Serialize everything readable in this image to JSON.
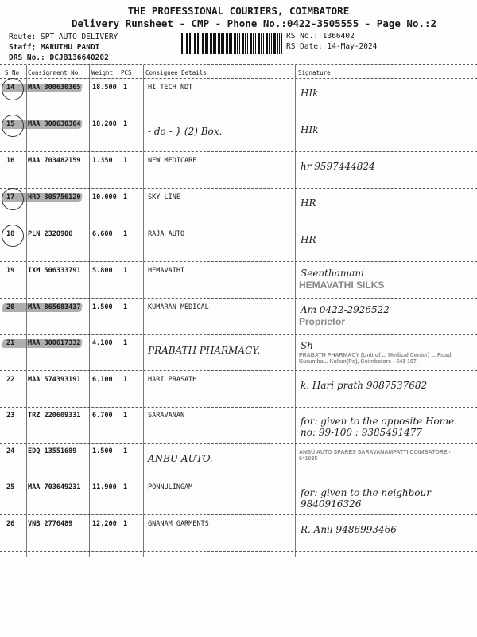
{
  "header": {
    "company": "THE PROFESSIONAL COURIERS, COIMBATORE",
    "title": "Delivery Runsheet - CMP - Phone No.:0422-3505555 - Page No.:2",
    "route": "Route: SPT AUTO DELIVERY",
    "staff": "Staff; MARUTHU PANDI",
    "drs": "DRS No.: DCJB136640202",
    "rs_no": "RS No.: 1366402",
    "rs_date": "RS Date: 14-May-2024"
  },
  "columns": [
    "S No",
    "Consignment No",
    "Weight",
    "PCS",
    "Consignee Details",
    "Signature"
  ],
  "rows": [
    {
      "sno": "14",
      "cn": "MAA 300630365",
      "weight": "18.500",
      "pcs": "1",
      "consignee": "HI TECH NDT",
      "highlight": true,
      "circled": true,
      "note": "",
      "sign": "HIk"
    },
    {
      "sno": "15",
      "cn": "MAA 300630364",
      "weight": "18.200",
      "pcs": "1",
      "consignee": "",
      "highlight": true,
      "circled": true,
      "note": "- do -   } (2) Box.",
      "sign": "HIk"
    },
    {
      "sno": "16",
      "cn": "MAA 703482159",
      "weight": "1.350",
      "pcs": "1",
      "consignee": "NEW MEDICARE",
      "highlight": false,
      "circled": false,
      "note": "",
      "sign": "hr 9597444824"
    },
    {
      "sno": "17",
      "cn": "HRD 305756120",
      "weight": "10.000",
      "pcs": "1",
      "consignee": "SKY LINE",
      "highlight": true,
      "circled": true,
      "note": "",
      "sign": "HR"
    },
    {
      "sno": "18",
      "cn": "PLN 2320906",
      "weight": "6.600",
      "pcs": "1",
      "consignee": "RAJA AUTO",
      "highlight": false,
      "circled": true,
      "note": "",
      "sign": "HR"
    },
    {
      "sno": "19",
      "cn": "IXM 506333791",
      "weight": "5.800",
      "pcs": "1",
      "consignee": "HEMAVATHI",
      "highlight": false,
      "circled": false,
      "note": "",
      "sign": "Seenthamani",
      "stamp": "HEMAVATHI SILKS"
    },
    {
      "sno": "20",
      "cn": "MAA 865683437",
      "weight": "1.500",
      "pcs": "1",
      "consignee": "KUMARAN MEDICAL",
      "highlight": true,
      "circled": false,
      "note": "",
      "sign": "Am  0422-2926522",
      "stamp": "Proprietor"
    },
    {
      "sno": "21",
      "cn": "MAA 300617332",
      "weight": "4.100",
      "pcs": "1",
      "consignee": "",
      "highlight": true,
      "circled": false,
      "note": "PRABATH PHARMACY.",
      "sign": "Sh",
      "stamp": "PRABATH PHARMACY (Unit of ... Medical Center) ... Road, Kurumba... Kulam(Po), Coimbatore - 641 107."
    },
    {
      "sno": "22",
      "cn": "MAA 574393191",
      "weight": "6.100",
      "pcs": "1",
      "consignee": "HARI PRASATH",
      "highlight": false,
      "circled": false,
      "note": "",
      "sign": "k. Hari prath 9087537682"
    },
    {
      "sno": "23",
      "cn": "TRZ 220609331",
      "weight": "6.700",
      "pcs": "1",
      "consignee": "SARAVANAN",
      "highlight": false,
      "circled": false,
      "note": "",
      "sign": "for: given to the opposite Home. no: 99-100 : 9385491477"
    },
    {
      "sno": "24",
      "cn": "EDQ 13551689",
      "weight": "1.500",
      "pcs": "1",
      "consignee": "",
      "highlight": false,
      "circled": false,
      "note": "ANBU AUTO.",
      "sign": "",
      "stamp": "ANBU AUTO SPARES SARAVANAMPATTI COIMBATORE - 641035"
    },
    {
      "sno": "25",
      "cn": "MAA 703649231",
      "weight": "11.900",
      "pcs": "1",
      "consignee": "PONNULINGAM",
      "highlight": false,
      "circled": false,
      "note": "",
      "sign": "for: given to the neighbour 9840916326"
    },
    {
      "sno": "26",
      "cn": "VNB 2776489",
      "weight": "12.200",
      "pcs": "1",
      "consignee": "GNANAM GARMENTS",
      "highlight": false,
      "circled": false,
      "note": "",
      "sign": "R. Anil 9486993466"
    }
  ]
}
